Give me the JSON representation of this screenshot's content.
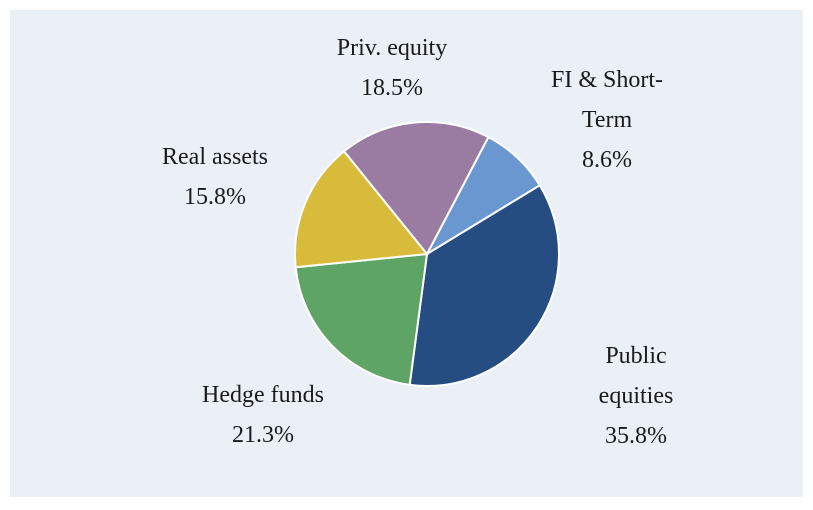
{
  "chart_data": {
    "type": "pie",
    "categories": [
      "FI & Short-Term",
      "Public equities",
      "Hedge funds",
      "Real assets",
      "Priv. equity"
    ],
    "values": [
      8.6,
      35.8,
      21.3,
      15.8,
      18.5
    ],
    "value_labels": [
      "8.6%",
      "35.8%",
      "21.3%",
      "15.8%",
      "18.5%"
    ],
    "colors": [
      "#6a97cf",
      "#254d82",
      "#5ea465",
      "#d9bb3c",
      "#9a7ba1"
    ]
  }
}
